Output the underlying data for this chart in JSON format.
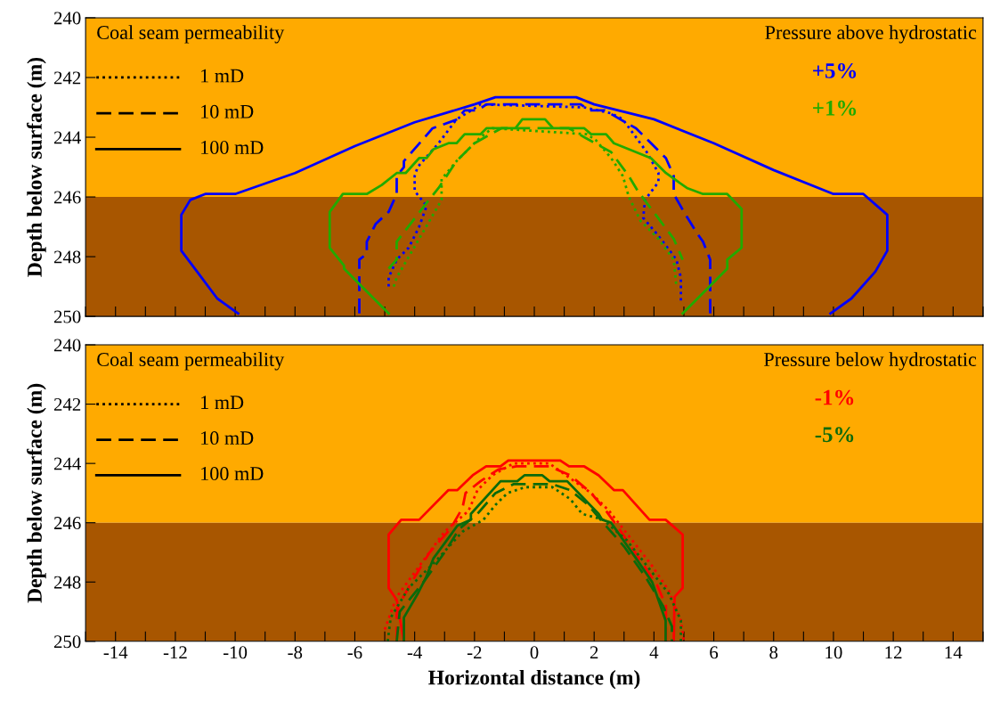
{
  "chart_data": [
    {
      "type": "line",
      "ylabel": "Depth below surface (m)",
      "xlim": [
        -15,
        15
      ],
      "ylim": [
        250,
        240
      ],
      "xticks": [
        {
          "value": -15,
          "label": null
        },
        -14,
        {
          "value": -13,
          "label": null
        },
        -12,
        {
          "value": -11,
          "label": null
        },
        -10,
        {
          "value": -9,
          "label": null
        },
        -8,
        {
          "value": -7,
          "label": null
        },
        -6,
        {
          "value": -5,
          "label": null
        },
        -4,
        {
          "value": -3,
          "label": null
        },
        -2,
        {
          "value": -1,
          "label": null
        },
        0,
        {
          "value": 1,
          "label": null
        },
        2,
        {
          "value": 3,
          "label": null
        },
        4,
        {
          "value": 5,
          "label": null
        },
        6,
        {
          "value": 7,
          "label": null
        },
        8,
        {
          "value": 9,
          "label": null
        },
        10,
        {
          "value": 11,
          "label": null
        },
        12,
        {
          "value": 13,
          "label": null
        },
        14,
        {
          "value": 15,
          "label": null
        }
      ],
      "yticks": [
        240,
        242,
        244,
        246,
        248,
        250
      ],
      "tick_labels": "y",
      "grid": false,
      "annotations": [
        "Coal seam permeability",
        "1 mD",
        "10 mD",
        "100 mD",
        "Pressure above hydrostatic",
        "+5%",
        "+1%"
      ],
      "bands": [
        {
          "axis": "y",
          "from": 240,
          "to": 246,
          "color": "#ffaa00"
        },
        {
          "axis": "y",
          "from": 246,
          "to": 250,
          "color": "#a85600"
        }
      ],
      "series": [
        {
          "color": "#0000ff",
          "line_style": "dotted",
          "x": [
            -4.87,
            -4.87,
            -4.6,
            -4.2,
            -3.85,
            -3.6,
            -4.0,
            -4.0,
            -3.9,
            -3.2,
            -2.6,
            -2.1,
            -1.8,
            1.67,
            2.57,
            2.96,
            3.76,
            4.15,
            4.15,
            3.7,
            3.64,
            4.15,
            4.75,
            4.9,
            4.9
          ],
          "values": [
            249.0,
            248.7,
            248.1,
            247.7,
            247.0,
            246.3,
            245.8,
            245.3,
            245.0,
            244.2,
            243.4,
            243.1,
            242.9,
            243.0,
            243.2,
            243.4,
            244.5,
            245.2,
            245.5,
            246.1,
            246.7,
            247.3,
            248.1,
            248.7,
            249.5
          ]
        },
        {
          "color": "#0000ff",
          "line_style": "dashed",
          "x": [
            -5.85,
            -5.85,
            -5.6,
            -5.6,
            -5.3,
            -4.87,
            -4.6,
            -4.6,
            -4.36,
            -4.36,
            -3.4,
            -2.57,
            -2.33,
            -1.9,
            -1.6,
            1.55,
            1.85,
            2.36,
            2.87,
            3.4,
            4.4,
            4.66,
            4.66,
            5.0,
            5.43,
            5.64,
            5.88,
            5.88
          ],
          "values": [
            249.9,
            248.1,
            247.9,
            247.5,
            246.9,
            246.5,
            245.9,
            245.3,
            245.0,
            244.8,
            243.7,
            243.4,
            243.1,
            243.1,
            242.9,
            242.9,
            243.1,
            243.1,
            243.4,
            243.7,
            244.7,
            245.3,
            245.9,
            246.5,
            247.2,
            247.5,
            248.1,
            249.9
          ]
        },
        {
          "color": "#0000ff",
          "line_style": "solid",
          "x": [
            -9.9,
            -10.6,
            -11.2,
            -11.8,
            -11.8,
            -11.5,
            -11.0,
            -10.0,
            -8.0,
            -6.0,
            -4.0,
            -2.0,
            -1.3,
            1.4,
            2.0,
            4.0,
            6.0,
            8.0,
            10.0,
            11.0,
            11.8,
            11.8,
            11.4,
            10.6,
            9.9
          ],
          "values": [
            249.9,
            249.4,
            248.6,
            247.8,
            246.6,
            246.1,
            245.9,
            245.9,
            245.2,
            244.3,
            243.5,
            242.9,
            242.66,
            242.66,
            242.9,
            243.4,
            244.2,
            245.1,
            245.9,
            245.9,
            246.6,
            247.8,
            248.5,
            249.4,
            249.9
          ]
        },
        {
          "color": "#22aa00",
          "line_style": "dotted",
          "x": [
            -4.7,
            -4.6,
            -3.1,
            -3.1,
            -2.6,
            -1.8,
            -1.4,
            1.76,
            2.06,
            2.57,
            2.96,
            3.16,
            3.55,
            4.15,
            4.66,
            4.75
          ],
          "values": [
            249.0,
            248.7,
            246.1,
            245.4,
            244.8,
            244.0,
            243.7,
            243.9,
            244.1,
            244.7,
            245.3,
            246.0,
            246.8,
            247.4,
            248.1,
            249.0
          ]
        },
        {
          "color": "#22aa00",
          "line_style": "dashed",
          "x": [
            -4.87,
            -4.6,
            -4.6,
            -3.6,
            -3.2,
            -2.6,
            -2.0,
            -1.1,
            1.16,
            1.67,
            2.57,
            3.16,
            3.46,
            3.76,
            4.66,
            4.96
          ],
          "values": [
            248.4,
            248.1,
            247.5,
            246.2,
            245.7,
            244.8,
            244.2,
            243.7,
            243.7,
            244.0,
            244.5,
            245.3,
            245.8,
            246.2,
            247.4,
            248.1
          ]
        },
        {
          "color": "#22aa00",
          "line_style": "solid",
          "x": [
            -4.87,
            -6.36,
            -6.36,
            -6.84,
            -6.84,
            -6.4,
            -5.6,
            -5.1,
            -4.6,
            -4.3,
            -3.85,
            -3.6,
            -3.37,
            -2.87,
            -2.6,
            -2.33,
            -1.8,
            -1.6,
            -0.63,
            -0.4,
            0.36,
            0.63,
            1.67,
            1.9,
            2.4,
            2.66,
            3.16,
            3.9,
            4.4,
            5.1,
            5.64,
            6.45,
            6.93,
            6.93,
            6.45,
            6.45,
            4.96
          ],
          "values": [
            249.9,
            248.4,
            248.3,
            247.7,
            246.5,
            245.9,
            245.9,
            245.6,
            245.2,
            245.2,
            244.7,
            244.7,
            244.4,
            244.2,
            244.2,
            243.9,
            243.9,
            243.7,
            243.7,
            243.4,
            243.4,
            243.7,
            243.7,
            243.9,
            243.9,
            244.2,
            244.4,
            244.7,
            245.2,
            245.7,
            245.9,
            245.9,
            246.4,
            247.7,
            248.1,
            248.4,
            249.9
          ]
        }
      ]
    },
    {
      "type": "line",
      "xlabel": "Horizontal distance (m)",
      "ylabel": "Depth below surface (m)",
      "xlim": [
        -15,
        15
      ],
      "ylim": [
        250,
        240
      ],
      "xticks": [
        {
          "value": -15,
          "label": null
        },
        -14,
        {
          "value": -13,
          "label": null
        },
        -12,
        {
          "value": -11,
          "label": null
        },
        -10,
        {
          "value": -9,
          "label": null
        },
        -8,
        {
          "value": -7,
          "label": null
        },
        -6,
        {
          "value": -5,
          "label": null
        },
        -4,
        {
          "value": -3,
          "label": null
        },
        -2,
        {
          "value": -1,
          "label": null
        },
        0,
        {
          "value": 1,
          "label": null
        },
        2,
        {
          "value": 3,
          "label": null
        },
        4,
        {
          "value": 5,
          "label": null
        },
        6,
        {
          "value": 7,
          "label": null
        },
        8,
        {
          "value": 9,
          "label": null
        },
        10,
        {
          "value": 11,
          "label": null
        },
        12,
        {
          "value": 13,
          "label": null
        },
        14,
        {
          "value": 15,
          "label": null
        }
      ],
      "yticks": [
        240,
        242,
        244,
        246,
        248,
        250
      ],
      "grid": false,
      "annotations": [
        "Coal seam permeability",
        "1 mD",
        "10 mD",
        "100 mD",
        "Pressure below hydrostatic",
        "-1%",
        "-5%"
      ],
      "bands": [
        {
          "axis": "y",
          "from": 240,
          "to": 246,
          "color": "#ffaa00"
        },
        {
          "axis": "y",
          "from": 246,
          "to": 250,
          "color": "#a85600"
        }
      ],
      "series": [
        {
          "color": "#ff0000",
          "line_style": "dotted",
          "x": [
            -5.0,
            -4.6,
            -3.8,
            -3.0,
            -2.2,
            -1.9,
            -1.4,
            -0.7,
            0.5,
            1.2,
            1.9,
            2.5,
            3.2,
            3.9,
            4.5,
            4.9,
            5.0
          ],
          "values": [
            249.6,
            248.5,
            247.4,
            246.3,
            245.6,
            244.9,
            244.4,
            244.0,
            244.0,
            244.5,
            245.0,
            245.6,
            246.5,
            247.4,
            248.3,
            249.3,
            250.0
          ]
        },
        {
          "color": "#ff0000",
          "line_style": "dashed",
          "x": [
            -4.6,
            -4.6,
            -4.1,
            -3.5,
            -2.8,
            -2.4,
            -2.3,
            -1.8,
            -1.2,
            -0.6,
            0.5,
            1.2,
            1.9,
            2.4,
            2.9,
            3.5,
            4.1,
            4.4,
            4.4
          ],
          "values": [
            250.0,
            248.9,
            248.0,
            247.0,
            246.2,
            245.5,
            245.0,
            244.6,
            244.2,
            244.1,
            244.1,
            244.4,
            245.0,
            245.6,
            246.3,
            247.2,
            248.1,
            248.8,
            250.0
          ]
        },
        {
          "color": "#ff0000",
          "line_style": "solid",
          "x": [
            -4.36,
            -4.6,
            -4.87,
            -4.87,
            -4.45,
            -3.85,
            -2.87,
            -2.57,
            -2.06,
            -1.61,
            -1.13,
            -0.87,
            0.87,
            1.16,
            1.67,
            2.15,
            2.66,
            2.96,
            3.85,
            4.39,
            4.96,
            4.96,
            4.69,
            4.66
          ],
          "values": [
            250.0,
            248.6,
            248.2,
            246.4,
            245.9,
            245.9,
            244.9,
            244.9,
            244.4,
            244.1,
            244.1,
            243.9,
            243.9,
            244.1,
            244.1,
            244.4,
            244.9,
            244.9,
            245.9,
            245.9,
            246.4,
            248.2,
            248.5,
            250.0
          ]
        },
        {
          "color": "#0b6a0b",
          "line_style": "dotted",
          "x": [
            -4.9,
            -4.8,
            -4.2,
            -3.3,
            -2.4,
            -1.7,
            -1.3,
            -0.9,
            -0.3,
            0.6,
            1.2,
            1.6,
            2.3,
            3.1,
            3.8,
            4.5,
            4.9,
            4.9
          ],
          "values": [
            250.0,
            249.2,
            248.2,
            247.3,
            246.3,
            245.9,
            245.4,
            245.0,
            244.8,
            244.8,
            245.2,
            245.7,
            245.9,
            246.6,
            247.5,
            248.4,
            249.3,
            250.0
          ]
        },
        {
          "color": "#0b6a0b",
          "line_style": "dashed",
          "x": [
            -4.6,
            -4.5,
            -3.7,
            -3.0,
            -2.5,
            -1.9,
            -1.3,
            -0.7,
            0.6,
            1.2,
            1.8,
            2.3,
            3.0,
            3.7,
            4.3,
            4.6,
            4.6
          ],
          "values": [
            250.0,
            249.0,
            248.0,
            247.0,
            246.2,
            245.7,
            245.0,
            244.7,
            244.7,
            244.9,
            245.4,
            246.0,
            246.8,
            247.8,
            248.8,
            249.5,
            250.0
          ]
        },
        {
          "color": "#0b6a0b",
          "line_style": "solid",
          "x": [
            -4.36,
            -4.36,
            -3.9,
            -3.6,
            -3.37,
            -2.57,
            -2.12,
            -2.12,
            -1.13,
            -0.57,
            -0.33,
            0.27,
            0.51,
            1.1,
            2.15,
            2.27,
            2.57,
            3.4,
            3.94,
            4.39,
            4.39
          ],
          "values": [
            250.0,
            249.2,
            248.4,
            247.8,
            247.2,
            246.1,
            245.9,
            245.7,
            244.6,
            244.6,
            244.4,
            244.4,
            244.6,
            244.6,
            245.7,
            245.9,
            246.0,
            247.2,
            248.0,
            249.3,
            250.0
          ]
        }
      ]
    }
  ]
}
